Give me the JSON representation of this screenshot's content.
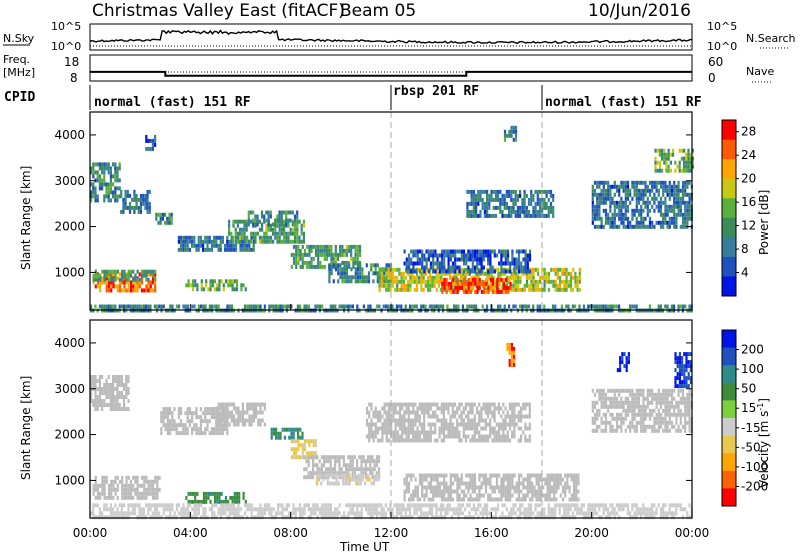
{
  "header": {
    "station": "Christmas Valley East (fitACF)",
    "beam": "Beam 05",
    "date": "10/Jun/2016"
  },
  "labels": {
    "nsky": "N.Sky",
    "nsearch": "N.Search",
    "freq_line1": "Freq.",
    "freq_line2": "[MHz]",
    "nave": "Nave",
    "cpid": "CPID",
    "time_axis": "Time UT"
  },
  "noise_axis_ticks": [
    "10^5",
    "10^0"
  ],
  "freq_axis_ticks": [
    "18",
    "8"
  ],
  "nave_axis_ticks": [
    "60",
    "0"
  ],
  "cpid_segments": [
    {
      "label": "normal (fast) 151 RF",
      "start_hour": 0
    },
    {
      "label": "rbsp 201 RF",
      "start_hour": 12
    },
    {
      "label": "normal (fast) 151 RF",
      "start_hour": 18
    }
  ],
  "time_ticks": [
    "00:00",
    "04:00",
    "08:00",
    "12:00",
    "16:00",
    "20:00",
    "00:00"
  ],
  "colors": {
    "ground_scatter": "#bbbbbb"
  },
  "chart_data": [
    {
      "type": "line",
      "name": "frequency",
      "x_hours": [
        0,
        3,
        3,
        15,
        15,
        24
      ],
      "y_mhz": [
        11.5,
        11.5,
        10,
        10,
        11.5,
        11.5
      ],
      "ylim": [
        8,
        18
      ]
    },
    {
      "type": "heatmap",
      "name": "power",
      "ylabel": "Slant Range [km]",
      "xlabel": "",
      "xlim_hours": [
        0,
        24
      ],
      "ylim_km": [
        180,
        4500
      ],
      "yticks": [
        1000,
        2000,
        3000,
        4000
      ],
      "colorbar": {
        "label": "Power [dB]",
        "ticks": [
          4,
          8,
          12,
          16,
          20,
          24,
          28
        ],
        "range": [
          0,
          30
        ],
        "colors": [
          "#0014e6",
          "#1e50be",
          "#377da0",
          "#3c8c5a",
          "#5aaf3c",
          "#c8c814",
          "#ffa500",
          "#ff5a00",
          "#ff0000"
        ]
      },
      "regions": [
        {
          "t": [
            0.1,
            2.6
          ],
          "r": [
            620,
            1000
          ],
          "level": 24
        },
        {
          "t": [
            0.1,
            2.6
          ],
          "r": [
            850,
            1060
          ],
          "level": 12
        },
        {
          "t": [
            3.8,
            6.2
          ],
          "r": [
            620,
            850
          ],
          "level": 14
        },
        {
          "t": [
            3.5,
            6.5
          ],
          "r": [
            1500,
            1800
          ],
          "level": 8
        },
        {
          "t": [
            5.5,
            8.5
          ],
          "r": [
            1700,
            2150
          ],
          "level": 12
        },
        {
          "t": [
            6.2,
            8.3
          ],
          "r": [
            2050,
            2350
          ],
          "level": 10
        },
        {
          "t": [
            8.0,
            10.8
          ],
          "r": [
            1100,
            1600
          ],
          "level": 12
        },
        {
          "t": [
            9.5,
            12.0
          ],
          "r": [
            850,
            1200
          ],
          "level": 10
        },
        {
          "t": [
            11.5,
            19.5
          ],
          "r": [
            600,
            1100
          ],
          "level": 18
        },
        {
          "t": [
            14.0,
            16.8
          ],
          "r": [
            550,
            880
          ],
          "level": 26
        },
        {
          "t": [
            12.5,
            17.5
          ],
          "r": [
            1050,
            1500
          ],
          "level": 6
        },
        {
          "t": [
            0.0,
            1.2
          ],
          "r": [
            2600,
            3400
          ],
          "level": 10
        },
        {
          "t": [
            1.2,
            2.4
          ],
          "r": [
            2300,
            2800
          ],
          "level": 8
        },
        {
          "t": [
            2.6,
            3.3
          ],
          "r": [
            2100,
            2300
          ],
          "level": 10
        },
        {
          "t": [
            15.0,
            18.5
          ],
          "r": [
            2200,
            2800
          ],
          "level": 8
        },
        {
          "t": [
            20.0,
            24.0
          ],
          "r": [
            2000,
            3000
          ],
          "level": 8
        },
        {
          "t": [
            22.5,
            24.0
          ],
          "r": [
            3200,
            3700
          ],
          "level": 14
        },
        {
          "t": [
            16.5,
            17.0
          ],
          "r": [
            3900,
            4200
          ],
          "level": 10
        },
        {
          "t": [
            2.2,
            2.6
          ],
          "r": [
            3700,
            4000
          ],
          "level": 6
        },
        {
          "t": [
            0.0,
            24.0
          ],
          "r": [
            180,
            300
          ],
          "level": 10
        }
      ]
    },
    {
      "type": "heatmap",
      "name": "velocity",
      "ylabel": "Slant Range [km]",
      "xlabel": "Time UT",
      "xlim_hours": [
        0,
        24
      ],
      "ylim_km": [
        180,
        4500
      ],
      "yticks": [
        1000,
        2000,
        3000,
        4000
      ],
      "colorbar": {
        "label": "Velocity [m s",
        "label_sup": "-1",
        "label_close": "]",
        "ticks": [
          200,
          100,
          50,
          15,
          -15,
          -50,
          -100,
          -200
        ],
        "range": [
          -250,
          250
        ],
        "colors": [
          "#0014e6",
          "#1e50be",
          "#2f8a8a",
          "#3c8c3c",
          "#7bd13c",
          "#cccccc",
          "#e8c850",
          "#ffa500",
          "#ff6400",
          "#ff0000"
        ]
      },
      "regions": [
        {
          "t": [
            0.1,
            2.8
          ],
          "r": [
            600,
            1100
          ],
          "vel": 0
        },
        {
          "t": [
            0.0,
            1.5
          ],
          "r": [
            2600,
            3300
          ],
          "vel": 0
        },
        {
          "t": [
            2.8,
            5.5
          ],
          "r": [
            2000,
            2600
          ],
          "vel": 0
        },
        {
          "t": [
            5.0,
            7.0
          ],
          "r": [
            2200,
            2700
          ],
          "vel": 0
        },
        {
          "t": [
            3.8,
            6.2
          ],
          "r": [
            500,
            750
          ],
          "vel": 40
        },
        {
          "t": [
            7.2,
            8.5
          ],
          "r": [
            1900,
            2150
          ],
          "vel": 60
        },
        {
          "t": [
            8.0,
            9.0
          ],
          "r": [
            1500,
            1900
          ],
          "vel": -60
        },
        {
          "t": [
            8.5,
            11.5
          ],
          "r": [
            1050,
            1550
          ],
          "vel": 0
        },
        {
          "t": [
            9.0,
            11.5
          ],
          "r": [
            900,
            1150
          ],
          "vel": -40
        },
        {
          "t": [
            12.5,
            19.5
          ],
          "r": [
            600,
            1150
          ],
          "vel": 0
        },
        {
          "t": [
            11.0,
            17.5
          ],
          "r": [
            1900,
            2700
          ],
          "vel": 0
        },
        {
          "t": [
            20.0,
            24.0
          ],
          "r": [
            2100,
            3000
          ],
          "vel": 0
        },
        {
          "t": [
            16.6,
            16.9
          ],
          "r": [
            3500,
            4000
          ],
          "vel": -200
        },
        {
          "t": [
            21.0,
            21.5
          ],
          "r": [
            3400,
            3800
          ],
          "vel": 200
        },
        {
          "t": [
            23.3,
            24.0
          ],
          "r": [
            3100,
            3800
          ],
          "vel": 200
        },
        {
          "t": [
            0.0,
            24.0
          ],
          "r": [
            180,
            500
          ],
          "vel": -30
        }
      ]
    }
  ]
}
